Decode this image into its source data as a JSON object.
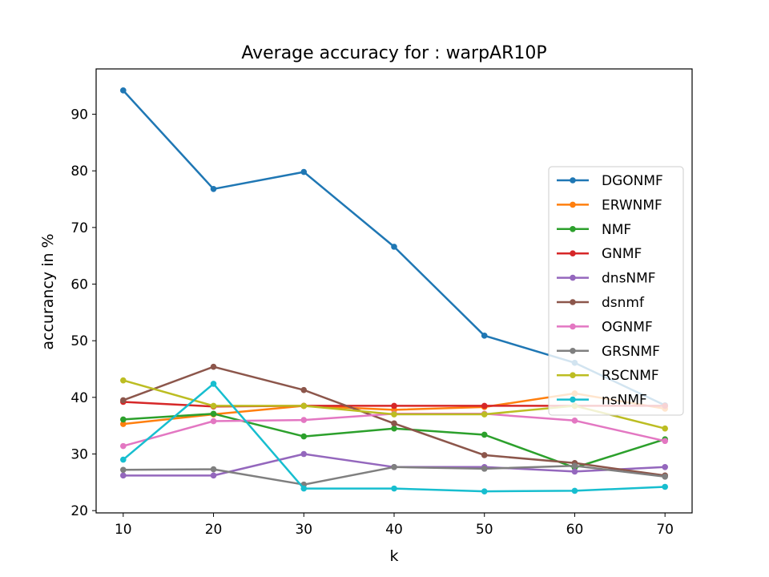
{
  "chart_data": {
    "type": "line",
    "title": "Average accuracy for : warpAR10P",
    "xlabel": "k",
    "ylabel": "accurancy in %",
    "x": [
      10,
      20,
      30,
      40,
      50,
      60,
      70
    ],
    "x_ticks": [
      "10",
      "20",
      "30",
      "40",
      "50",
      "60",
      "70"
    ],
    "y_ticks": [
      "20",
      "30",
      "40",
      "50",
      "60",
      "70",
      "80",
      "90"
    ],
    "xlim": [
      7,
      73
    ],
    "ylim": [
      19.6,
      98
    ],
    "grid": false,
    "legend_position": "center-right",
    "series": [
      {
        "name": "DGONMF",
        "color": "#1f77b4",
        "values": [
          94.2,
          76.8,
          79.8,
          66.6,
          50.9,
          46.1,
          38.6
        ]
      },
      {
        "name": "ERWNMF",
        "color": "#ff7f0e",
        "values": [
          35.3,
          37.0,
          38.5,
          37.8,
          38.3,
          40.7,
          38.0
        ]
      },
      {
        "name": "NMF",
        "color": "#2ca02c",
        "values": [
          36.1,
          37.1,
          33.1,
          34.5,
          33.4,
          27.6,
          32.6
        ]
      },
      {
        "name": "GNMF",
        "color": "#d62728",
        "values": [
          39.2,
          38.4,
          38.5,
          38.5,
          38.5,
          38.5,
          38.5
        ]
      },
      {
        "name": "dnsNMF",
        "color": "#9467bd",
        "values": [
          26.2,
          26.2,
          30.0,
          27.7,
          27.7,
          26.9,
          27.7
        ]
      },
      {
        "name": "dsnmf",
        "color": "#8c564b",
        "values": [
          39.5,
          45.4,
          41.3,
          35.4,
          29.8,
          28.4,
          26.2
        ]
      },
      {
        "name": "OGNMF",
        "color": "#e377c2",
        "values": [
          31.4,
          35.8,
          36.0,
          37.1,
          37.1,
          35.9,
          32.3
        ]
      },
      {
        "name": "GRSNMF",
        "color": "#7f7f7f",
        "values": [
          27.2,
          27.3,
          24.6,
          27.7,
          27.4,
          27.9,
          26.0
        ]
      },
      {
        "name": "RSCNMF",
        "color": "#bcbd22",
        "values": [
          43.0,
          38.5,
          38.5,
          37.0,
          37.0,
          38.5,
          34.5
        ]
      },
      {
        "name": "nsNMF",
        "color": "#17becf",
        "values": [
          29.0,
          42.4,
          23.9,
          23.9,
          23.4,
          23.5,
          24.2
        ]
      }
    ]
  }
}
